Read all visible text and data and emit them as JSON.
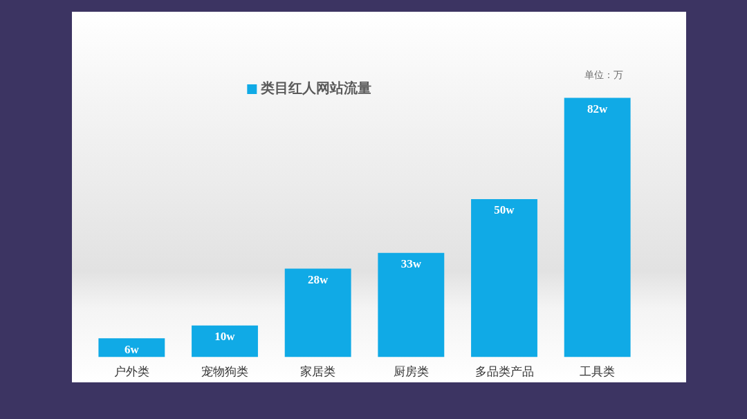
{
  "chart_data": {
    "type": "bar",
    "categories": [
      "户外类",
      "宠物狗类",
      "家居类",
      "厨房类",
      "多品类产品",
      "工具类"
    ],
    "series": [
      {
        "name": "类目红人网站流量",
        "color": "#10aae6",
        "values": [
          6,
          10,
          28,
          33,
          50,
          82
        ],
        "value_labels": [
          "6w",
          "10w",
          "28w",
          "33w",
          "50w",
          "82w"
        ]
      }
    ],
    "legend": "top",
    "tick_labels": "x",
    "annotations": [
      "单位：万"
    ]
  }
}
